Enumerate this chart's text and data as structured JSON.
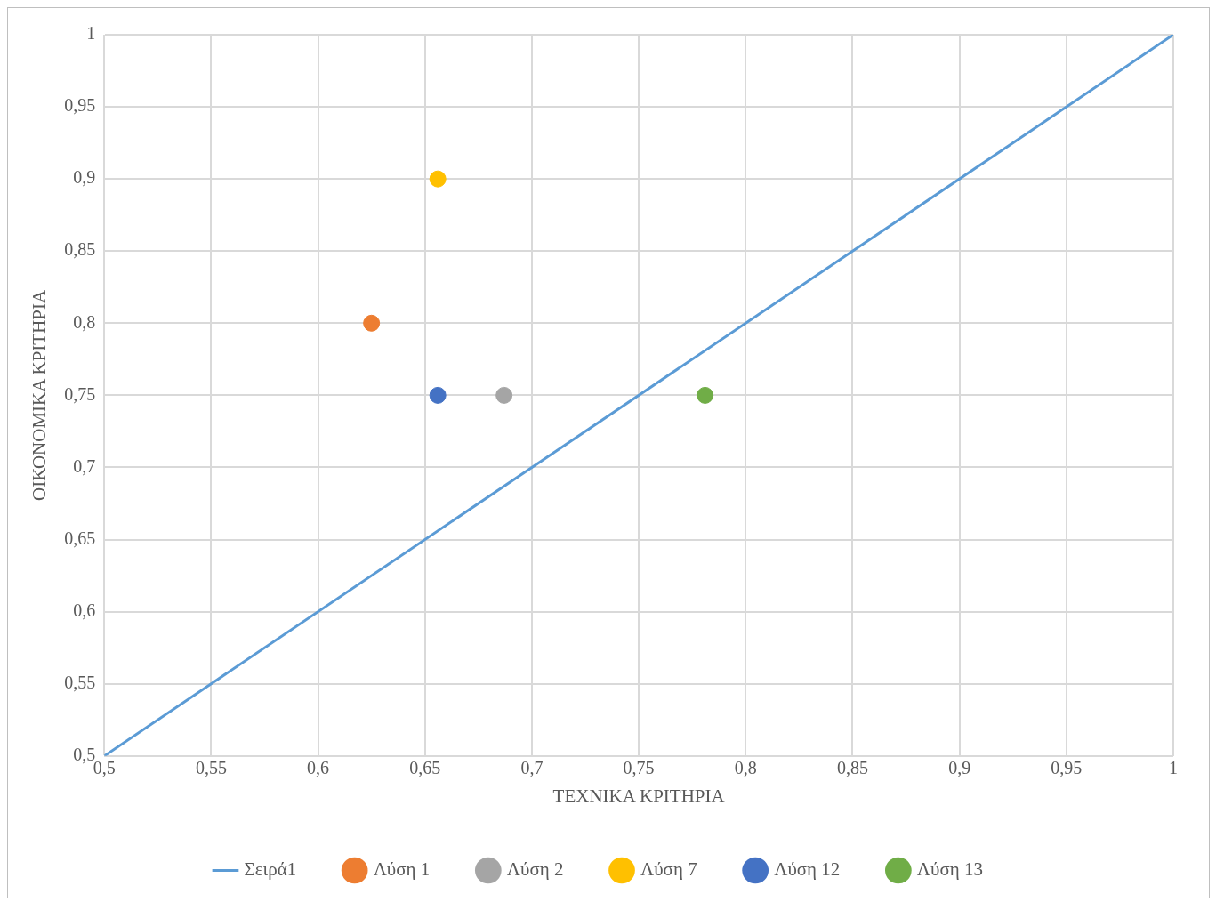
{
  "chart_data": {
    "type": "scatter",
    "xlabel": "ΤΕΧΝΙΚΑ ΚΡΙΤΗΡΙΑ",
    "ylabel": "ΟΙΚΟΝΟΜΙΚΑ ΚΡΙΤΗΡΙΑ",
    "xlim": [
      0.5,
      1
    ],
    "ylim": [
      0.5,
      1
    ],
    "xticks": [
      {
        "value": 0.5,
        "label": "0,5"
      },
      {
        "value": 0.55,
        "label": "0,55"
      },
      {
        "value": 0.6,
        "label": "0,6"
      },
      {
        "value": 0.65,
        "label": "0,65"
      },
      {
        "value": 0.7,
        "label": "0,7"
      },
      {
        "value": 0.75,
        "label": "0,75"
      },
      {
        "value": 0.8,
        "label": "0,8"
      },
      {
        "value": 0.85,
        "label": "0,85"
      },
      {
        "value": 0.9,
        "label": "0,9"
      },
      {
        "value": 0.95,
        "label": "0,95"
      },
      {
        "value": 1,
        "label": "1"
      }
    ],
    "yticks": [
      {
        "value": 0.5,
        "label": "0,5"
      },
      {
        "value": 0.55,
        "label": "0,55"
      },
      {
        "value": 0.6,
        "label": "0,6"
      },
      {
        "value": 0.65,
        "label": "0,65"
      },
      {
        "value": 0.7,
        "label": "0,7"
      },
      {
        "value": 0.75,
        "label": "0,75"
      },
      {
        "value": 0.8,
        "label": "0,8"
      },
      {
        "value": 0.85,
        "label": "0,85"
      },
      {
        "value": 0.9,
        "label": "0,9"
      },
      {
        "value": 0.95,
        "label": "0,95"
      },
      {
        "value": 1,
        "label": "1"
      }
    ],
    "grid": true,
    "legend": "bottom",
    "marker": "circle",
    "series": [
      {
        "name": "Σειρά1",
        "type": "line",
        "marker": "none",
        "color": "#5b9bd5",
        "x": [
          0.5,
          1
        ],
        "values": [
          0.5,
          1
        ]
      },
      {
        "name": "Λύση 1",
        "color": "#ed7d31",
        "x": [
          0.625
        ],
        "values": [
          0.8
        ]
      },
      {
        "name": "Λύση 2",
        "color": "#a5a5a5",
        "x": [
          0.687
        ],
        "values": [
          0.75
        ]
      },
      {
        "name": "Λύση 7",
        "color": "#ffc000",
        "x": [
          0.656
        ],
        "values": [
          0.9
        ]
      },
      {
        "name": "Λύση 12",
        "color": "#4472c4",
        "x": [
          0.656
        ],
        "values": [
          0.75
        ]
      },
      {
        "name": "Λύση 13",
        "color": "#70ad47",
        "x": [
          0.781
        ],
        "values": [
          0.75
        ]
      }
    ]
  }
}
